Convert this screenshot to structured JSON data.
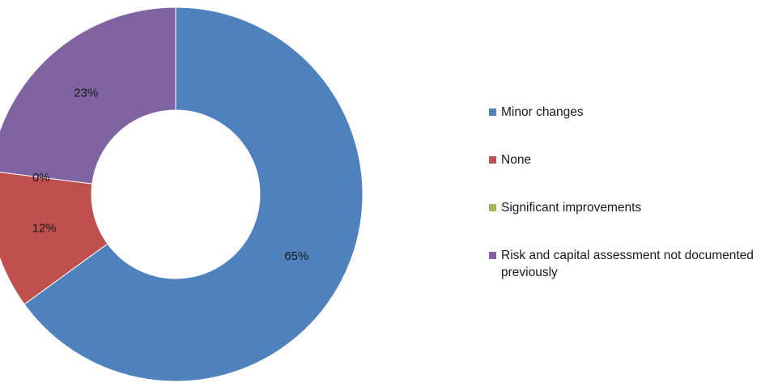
{
  "chart_data": {
    "type": "pie",
    "variant": "donut",
    "categories": [
      "Minor changes",
      "None",
      "Significant improvements",
      "Risk and capital assessment not documented previously"
    ],
    "values": [
      65,
      12,
      0,
      23
    ],
    "value_labels": [
      "65%",
      "12%",
      "0%",
      "23%"
    ],
    "colors": [
      "#4F81BD",
      "#C0504D",
      "#9BBB59",
      "#8064A2"
    ],
    "legend_position": "right",
    "start_angle": "top, clockwise"
  }
}
